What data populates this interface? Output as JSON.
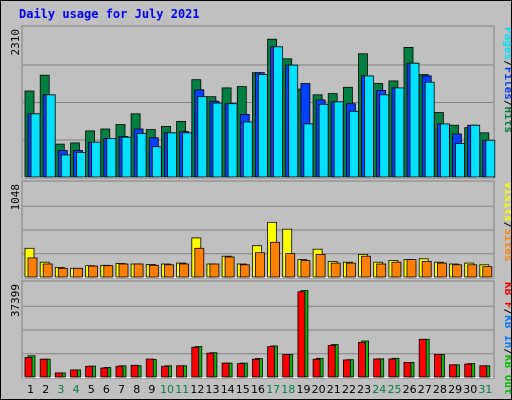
{
  "title": "Daily usage for July 2021",
  "panels": {
    "hits": {
      "max_label": "2310"
    },
    "sites": {
      "max_label": "1048"
    },
    "kb": {
      "max_label": "37399"
    }
  },
  "legends": {
    "hits": [
      "Pages",
      "/",
      "Files",
      "/",
      "Hits"
    ],
    "sites": [
      "Visits",
      "/",
      "Sites"
    ],
    "kb": [
      "KB F",
      "/",
      "KB In",
      "/",
      "KB Out"
    ]
  },
  "colors": {
    "hits": "#008040",
    "files": "#0040ff",
    "pages": "#00e0ff",
    "visits": "#ffff00",
    "sites": "#ff8000",
    "kbout": "#00c000",
    "kbin": "#ff0000",
    "kbf": "#ff0000",
    "weekday": "#000000",
    "weekend": "#008040",
    "title": "#0000ff"
  },
  "chart_data": {
    "type": "bar",
    "title": "Daily usage for July 2021",
    "categories": [
      "1",
      "2",
      "3",
      "4",
      "5",
      "6",
      "7",
      "8",
      "9",
      "10",
      "11",
      "12",
      "13",
      "14",
      "15",
      "16",
      "17",
      "18",
      "19",
      "20",
      "21",
      "22",
      "23",
      "24",
      "25",
      "26",
      "27",
      "28",
      "29",
      "30",
      "31"
    ],
    "weekend_days": [
      "3",
      "4",
      "10",
      "11",
      "17",
      "18",
      "24",
      "25",
      "31"
    ],
    "panels": [
      {
        "name": "hits",
        "ylim": [
          0,
          2310
        ],
        "series": [
          {
            "name": "Hits",
            "values": [
              1360,
              1610,
              520,
              540,
              730,
              760,
              830,
              1000,
              750,
              800,
              880,
              1540,
              1270,
              1410,
              1430,
              1650,
              2180,
              1870,
              1390,
              1300,
              1320,
              1420,
              1950,
              1480,
              1520,
              2050,
              1620,
              1020,
              820,
              780,
              700
            ]
          },
          {
            "name": "Files",
            "values": [
              1000,
              1300,
              420,
              420,
              550,
              610,
              640,
              760,
              620,
              700,
              720,
              1380,
              1200,
              1160,
              990,
              1650,
              2060,
              1770,
              1480,
              1220,
              1190,
              1160,
              1600,
              1370,
              1410,
              1800,
              1600,
              840,
              680,
              820,
              580
            ]
          },
          {
            "name": "Pages",
            "values": [
              1000,
              1300,
              350,
              390,
              550,
              610,
              630,
              690,
              480,
              700,
              700,
              1270,
              1170,
              1160,
              870,
              1620,
              2060,
              1770,
              840,
              1150,
              1190,
              1040,
              1600,
              1300,
              1410,
              1800,
              1500,
              840,
              530,
              820,
              580
            ]
          }
        ]
      },
      {
        "name": "sites",
        "ylim": [
          0,
          1048
        ],
        "series": [
          {
            "name": "Visits",
            "values": [
              330,
              170,
              110,
              100,
              130,
              135,
              155,
              150,
              145,
              150,
              160,
              450,
              150,
              240,
              150,
              360,
              630,
              550,
              200,
              320,
              180,
              170,
              260,
              170,
              190,
              200,
              210,
              170,
              150,
              160,
              140
            ]
          },
          {
            "name": "Sites",
            "values": [
              220,
              150,
              100,
              100,
              125,
              130,
              150,
              150,
              135,
              140,
              150,
              330,
              150,
              230,
              140,
              280,
              400,
              270,
              190,
              260,
              160,
              160,
              240,
              150,
              170,
              200,
              180,
              160,
              140,
              140,
              120
            ]
          }
        ]
      },
      {
        "name": "kb",
        "ylim": [
          0,
          37399
        ],
        "series": [
          {
            "name": "KB Out",
            "values": [
              8700,
              7300,
              1700,
              2900,
              4500,
              3900,
              4600,
              4600,
              7200,
              4600,
              4600,
              12500,
              10000,
              5700,
              5700,
              7600,
              12800,
              9200,
              35500,
              7700,
              13300,
              7100,
              14800,
              7500,
              7700,
              6000,
              15500,
              9300,
              5000,
              5500,
              4600
            ]
          },
          {
            "name": "KB In",
            "values": [
              8000,
              7300,
              1700,
              2900,
              4400,
              3700,
              4400,
              4800,
              7400,
              4300,
              4600,
              12200,
              9800,
              5700,
              5500,
              7300,
              12500,
              9200,
              35000,
              7300,
              13000,
              7000,
              14200,
              7400,
              7400,
              6000,
              15500,
              9300,
              5000,
              5300,
              4600
            ]
          },
          {
            "name": "KB F",
            "values": [
              0,
              0,
              0,
              0,
              0,
              0,
              0,
              0,
              0,
              0,
              0,
              0,
              0,
              0,
              0,
              0,
              0,
              0,
              0,
              0,
              0,
              0,
              0,
              0,
              0,
              0,
              0,
              0,
              0,
              0,
              0
            ]
          }
        ]
      }
    ],
    "xlabel": "",
    "ylabel": "",
    "grid": true,
    "legend": "right (vertical)"
  }
}
